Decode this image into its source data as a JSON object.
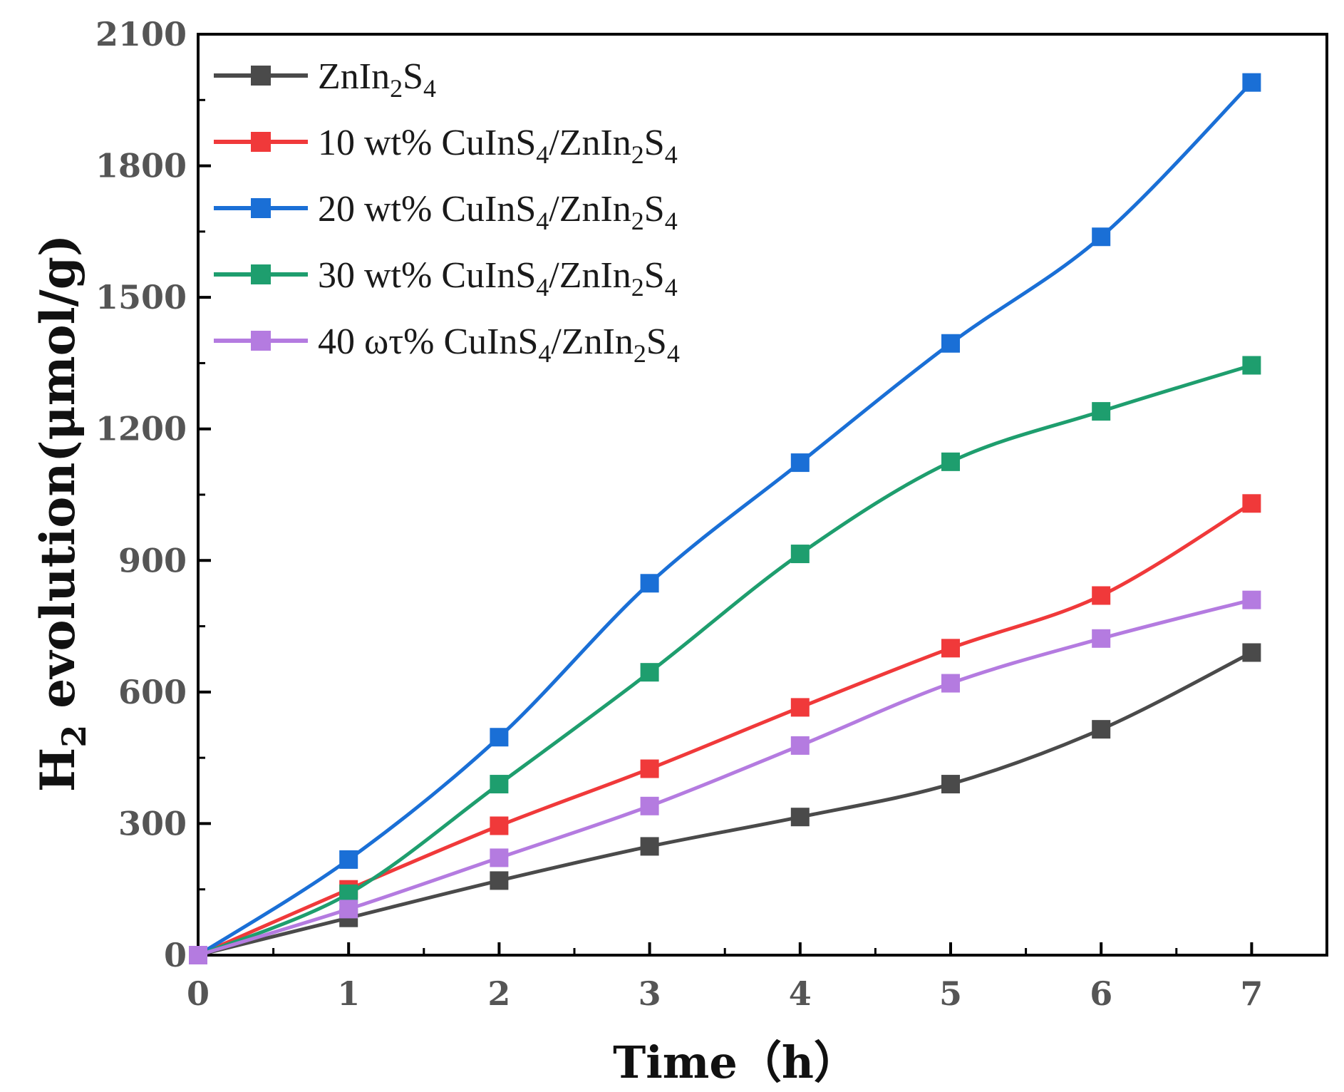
{
  "chart_data": {
    "type": "line",
    "x": [
      0,
      1,
      2,
      3,
      4,
      5,
      6,
      7
    ],
    "xlim": [
      0,
      7.5
    ],
    "ylim": [
      0,
      2100
    ],
    "xticks": [
      "0",
      "1",
      "2",
      "3",
      "4",
      "5",
      "6",
      "7"
    ],
    "yticks": [
      "0",
      "300",
      "600",
      "900",
      "1200",
      "1500",
      "1800",
      "2100"
    ],
    "xlabel": "Time（h）",
    "ylabel": {
      "h": "H",
      "h_sub": "2",
      "rest": " evolution(μmol/g)"
    },
    "series": [
      {
        "name": "ZnIn2S4",
        "legend_parts": [
          [
            "ZnIn",
            ""
          ],
          [
            "2",
            "sub"
          ],
          [
            "S",
            ""
          ],
          [
            "4",
            "sub"
          ]
        ],
        "color": "#4a4a4a",
        "values": [
          0,
          85,
          170,
          248,
          315,
          390,
          515,
          690
        ]
      },
      {
        "name": "10 wt% CuInS4/ZnIn2S4",
        "legend_parts": [
          [
            "10 wt% CuInS",
            ""
          ],
          [
            "4",
            "sub"
          ],
          [
            "/ZnIn",
            ""
          ],
          [
            "2",
            "sub"
          ],
          [
            "S",
            ""
          ],
          [
            "4",
            "sub"
          ]
        ],
        "color": "#f0393a",
        "values": [
          0,
          150,
          295,
          425,
          565,
          700,
          820,
          1030
        ]
      },
      {
        "name": "20 wt% CuInS4/ZnIn2S4",
        "legend_parts": [
          [
            "20 wt% CuInS",
            ""
          ],
          [
            "4",
            "sub"
          ],
          [
            "/ZnIn",
            ""
          ],
          [
            "2",
            "sub"
          ],
          [
            "S",
            ""
          ],
          [
            "4",
            "sub"
          ]
        ],
        "color": "#1a6fd6",
        "values": [
          0,
          218,
          497,
          848,
          1123,
          1395,
          1638,
          1990
        ]
      },
      {
        "name": "30 wt% CuInS4/ZnIn2S4",
        "legend_parts": [
          [
            "30 wt% CuInS",
            ""
          ],
          [
            "4",
            "sub"
          ],
          [
            "/ZnIn",
            ""
          ],
          [
            "2",
            "sub"
          ],
          [
            "S",
            ""
          ],
          [
            "4",
            "sub"
          ]
        ],
        "color": "#1e9e6e",
        "values": [
          0,
          140,
          390,
          645,
          915,
          1125,
          1240,
          1345
        ]
      },
      {
        "name": "40 ωτ% CuInS4/ZnIn2S4",
        "legend_parts": [
          [
            "40 ωτ% CuInS",
            ""
          ],
          [
            "4",
            "sub"
          ],
          [
            "/ZnIn",
            ""
          ],
          [
            "2",
            "sub"
          ],
          [
            "S",
            ""
          ],
          [
            "4",
            "sub"
          ]
        ],
        "color": "#b47be0",
        "values": [
          0,
          105,
          222,
          340,
          478,
          620,
          722,
          810
        ]
      }
    ]
  }
}
